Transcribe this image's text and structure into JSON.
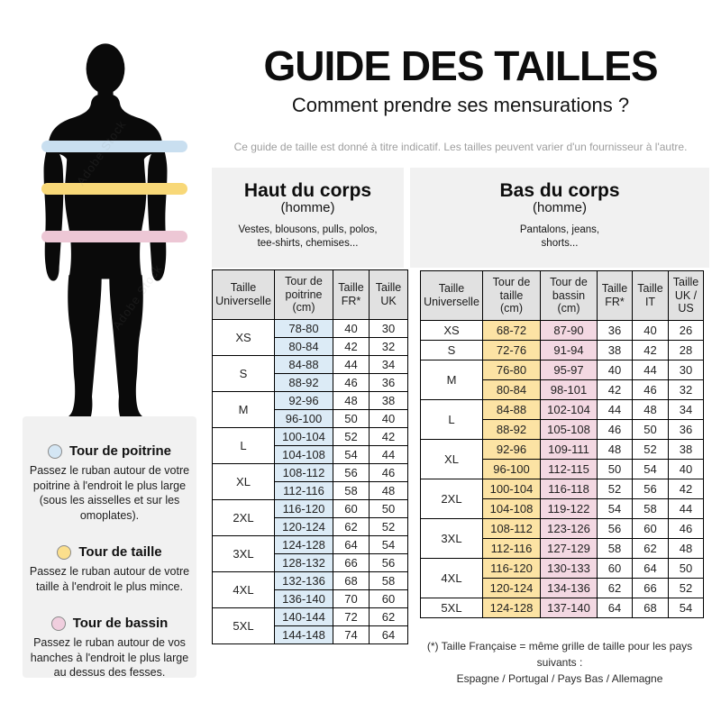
{
  "title": "GUIDE DES TAILLES",
  "subtitle": "Comment prendre ses mensurations ?",
  "disclaimer": "Ce guide de taille est donné à titre indicatif. Les tailles peuvent varier d'un fournisseur à l'autre.",
  "watermark": "Adobe Stock",
  "colors": {
    "cell_blue": "#dcebf6",
    "cell_yellow": "#fce3a4",
    "cell_pink": "#f3d8e2",
    "band_chest": "#c9dff0",
    "band_waist": "#f8d878",
    "band_hip": "#edc7d5",
    "header_cell": "#e1e1e1",
    "panel_gray": "#f1f1f1",
    "silhouette": "#0a0a0a",
    "disclaimer_text": "#9e9e9e"
  },
  "legend": {
    "items": [
      {
        "title": "Tour de poitrine",
        "color": "#d4e6f4",
        "text": "Passez le ruban autour de votre poitrine à l'endroit le plus large (sous les aisselles et sur les omoplates)."
      },
      {
        "title": "Tour de taille",
        "color": "#fbdf8d",
        "text": "Passez le ruban autour de votre taille à l'endroit le plus mince."
      },
      {
        "title": "Tour de bassin",
        "color": "#f0cede",
        "text": "Passez le ruban autour de vos hanches à l'endroit le plus large au dessus des fesses."
      }
    ]
  },
  "upper_table": {
    "block_title": "Haut du corps",
    "block_gender": "(homme)",
    "block_items": "Vestes, blousons, pulls, polos,\ntee-shirts, chemises...",
    "headers": [
      "Taille\nUniverselle",
      "Tour de\npoitrine\n(cm)",
      "Taille\nFR*",
      "Taille\nUK"
    ],
    "col_classes": [
      "c-blue",
      "",
      ""
    ],
    "groups": [
      {
        "size": "XS",
        "rows": [
          [
            "78-80",
            "40",
            "30"
          ],
          [
            "80-84",
            "42",
            "32"
          ]
        ]
      },
      {
        "size": "S",
        "rows": [
          [
            "84-88",
            "44",
            "34"
          ],
          [
            "88-92",
            "46",
            "36"
          ]
        ]
      },
      {
        "size": "M",
        "rows": [
          [
            "92-96",
            "48",
            "38"
          ],
          [
            "96-100",
            "50",
            "40"
          ]
        ]
      },
      {
        "size": "L",
        "rows": [
          [
            "100-104",
            "52",
            "42"
          ],
          [
            "104-108",
            "54",
            "44"
          ]
        ]
      },
      {
        "size": "XL",
        "rows": [
          [
            "108-112",
            "56",
            "46"
          ],
          [
            "112-116",
            "58",
            "48"
          ]
        ]
      },
      {
        "size": "2XL",
        "rows": [
          [
            "116-120",
            "60",
            "50"
          ],
          [
            "120-124",
            "62",
            "52"
          ]
        ]
      },
      {
        "size": "3XL",
        "rows": [
          [
            "124-128",
            "64",
            "54"
          ],
          [
            "128-132",
            "66",
            "56"
          ]
        ]
      },
      {
        "size": "4XL",
        "rows": [
          [
            "132-136",
            "68",
            "58"
          ],
          [
            "136-140",
            "70",
            "60"
          ]
        ]
      },
      {
        "size": "5XL",
        "rows": [
          [
            "140-144",
            "72",
            "62"
          ],
          [
            "144-148",
            "74",
            "64"
          ]
        ]
      }
    ]
  },
  "lower_table": {
    "block_title": "Bas du corps",
    "block_gender": "(homme)",
    "block_items": "Pantalons, jeans,\nshorts...",
    "headers": [
      "Taille\nUniverselle",
      "Tour de\ntaille\n(cm)",
      "Tour de\nbassin\n(cm)",
      "Taille\nFR*",
      "Taille\nIT",
      "Taille\nUK /\nUS"
    ],
    "col_classes": [
      "c-yellow",
      "c-pink",
      "",
      "",
      ""
    ],
    "groups": [
      {
        "size": "XS",
        "rows": [
          [
            "68-72",
            "87-90",
            "36",
            "40",
            "26"
          ]
        ]
      },
      {
        "size": "S",
        "rows": [
          [
            "72-76",
            "91-94",
            "38",
            "42",
            "28"
          ]
        ]
      },
      {
        "size": "M",
        "rows": [
          [
            "76-80",
            "95-97",
            "40",
            "44",
            "30"
          ],
          [
            "80-84",
            "98-101",
            "42",
            "46",
            "32"
          ]
        ]
      },
      {
        "size": "L",
        "rows": [
          [
            "84-88",
            "102-104",
            "44",
            "48",
            "34"
          ],
          [
            "88-92",
            "105-108",
            "46",
            "50",
            "36"
          ]
        ]
      },
      {
        "size": "XL",
        "rows": [
          [
            "92-96",
            "109-111",
            "48",
            "52",
            "38"
          ],
          [
            "96-100",
            "112-115",
            "50",
            "54",
            "40"
          ]
        ]
      },
      {
        "size": "2XL",
        "rows": [
          [
            "100-104",
            "116-118",
            "52",
            "56",
            "42"
          ],
          [
            "104-108",
            "119-122",
            "54",
            "58",
            "44"
          ]
        ]
      },
      {
        "size": "3XL",
        "rows": [
          [
            "108-112",
            "123-126",
            "56",
            "60",
            "46"
          ],
          [
            "112-116",
            "127-129",
            "58",
            "62",
            "48"
          ]
        ]
      },
      {
        "size": "4XL",
        "rows": [
          [
            "116-120",
            "130-133",
            "60",
            "64",
            "50"
          ],
          [
            "120-124",
            "134-136",
            "62",
            "66",
            "52"
          ]
        ]
      },
      {
        "size": "5XL",
        "rows": [
          [
            "124-128",
            "137-140",
            "64",
            "68",
            "54"
          ]
        ]
      }
    ]
  },
  "footnote": {
    "line1": "(*) Taille Française = même grille de taille pour les pays suivants :",
    "line2": "Espagne / Portugal / Pays Bas / Allemagne"
  }
}
